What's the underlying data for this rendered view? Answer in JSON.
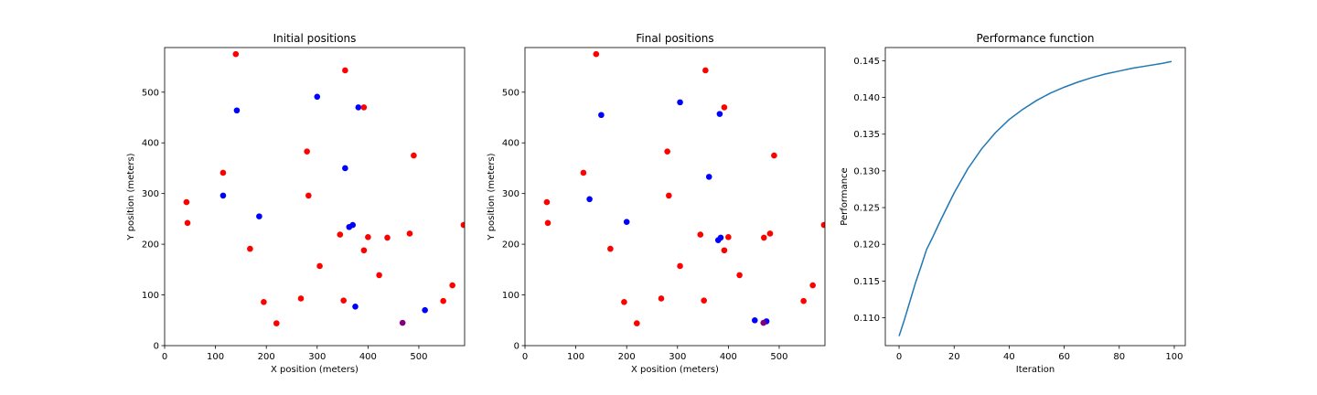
{
  "chart_data": [
    {
      "type": "scatter",
      "title": "Initial positions",
      "xlabel": "X position (meters)",
      "ylabel": "Y position (meters)",
      "xlim": [
        0,
        590
      ],
      "ylim": [
        0,
        588
      ],
      "xticks": [
        0,
        100,
        200,
        300,
        400,
        500
      ],
      "yticks": [
        0,
        100,
        200,
        300,
        400,
        500
      ],
      "grid": false,
      "series": [
        {
          "color": "#ff0000",
          "points": [
            [
              140,
              575
            ],
            [
              355,
              543
            ],
            [
              392,
              470
            ],
            [
              490,
              375
            ],
            [
              280,
              383
            ],
            [
              283,
              296
            ],
            [
              43,
              283
            ],
            [
              45,
              242
            ],
            [
              115,
              341
            ],
            [
              168,
              191
            ],
            [
              195,
              86
            ],
            [
              220,
              44
            ],
            [
              268,
              93
            ],
            [
              305,
              157
            ],
            [
              345,
              219
            ],
            [
              352,
              89
            ],
            [
              400,
              214
            ],
            [
              392,
              188
            ],
            [
              422,
              139
            ],
            [
              438,
              213
            ],
            [
              482,
              221
            ],
            [
              548,
              88
            ],
            [
              566,
              119
            ],
            [
              588,
              238
            ]
          ]
        },
        {
          "color": "#0000ff",
          "points": [
            [
              142,
              464
            ],
            [
              300,
              491
            ],
            [
              381,
              470
            ],
            [
              355,
              350
            ],
            [
              115,
              296
            ],
            [
              186,
              255
            ],
            [
              363,
              234
            ],
            [
              370,
              238
            ],
            [
              375,
              77
            ],
            [
              512,
              70
            ]
          ]
        },
        {
          "color": "#800080",
          "points": [
            [
              468,
              45
            ]
          ]
        }
      ]
    },
    {
      "type": "scatter",
      "title": "Final positions",
      "xlabel": "X position (meters)",
      "ylabel": "Y position (meters)",
      "xlim": [
        0,
        590
      ],
      "ylim": [
        0,
        588
      ],
      "xticks": [
        0,
        100,
        200,
        300,
        400,
        500
      ],
      "yticks": [
        0,
        100,
        200,
        300,
        400,
        500
      ],
      "grid": false,
      "series": [
        {
          "color": "#ff0000",
          "points": [
            [
              140,
              575
            ],
            [
              355,
              543
            ],
            [
              392,
              470
            ],
            [
              490,
              375
            ],
            [
              280,
              383
            ],
            [
              283,
              296
            ],
            [
              43,
              283
            ],
            [
              45,
              242
            ],
            [
              115,
              341
            ],
            [
              168,
              191
            ],
            [
              195,
              86
            ],
            [
              220,
              44
            ],
            [
              268,
              93
            ],
            [
              305,
              157
            ],
            [
              345,
              219
            ],
            [
              352,
              89
            ],
            [
              400,
              214
            ],
            [
              392,
              188
            ],
            [
              422,
              139
            ],
            [
              470,
              213
            ],
            [
              482,
              221
            ],
            [
              548,
              88
            ],
            [
              566,
              119
            ],
            [
              588,
              238
            ]
          ]
        },
        {
          "color": "#0000ff",
          "points": [
            [
              150,
              455
            ],
            [
              305,
              480
            ],
            [
              383,
              457
            ],
            [
              362,
              333
            ],
            [
              127,
              289
            ],
            [
              200,
              244
            ],
            [
              380,
              208
            ],
            [
              385,
              213
            ],
            [
              452,
              50
            ],
            [
              475,
              48
            ]
          ]
        },
        {
          "color": "#800080",
          "points": [
            [
              469,
              45
            ]
          ]
        }
      ]
    },
    {
      "type": "line",
      "title": "Performance function",
      "xlabel": "Iteration",
      "ylabel": "Performance",
      "xlim": [
        -5,
        104
      ],
      "ylim": [
        0.1062,
        0.1468
      ],
      "xticks": [
        0,
        20,
        40,
        60,
        80,
        100
      ],
      "yticks": [
        0.11,
        0.115,
        0.12,
        0.125,
        0.13,
        0.135,
        0.14,
        0.145
      ],
      "ytick_labels": [
        "0.110",
        "0.115",
        "0.120",
        "0.125",
        "0.130",
        "0.135",
        "0.140",
        "0.145"
      ],
      "grid": false,
      "series": [
        {
          "color": "#1f77b4",
          "x": [
            0,
            2,
            4,
            6,
            8,
            10,
            12,
            15,
            20,
            25,
            30,
            35,
            40,
            45,
            50,
            55,
            60,
            65,
            70,
            75,
            80,
            85,
            90,
            95,
            99
          ],
          "values": [
            0.1075,
            0.1098,
            0.1123,
            0.1148,
            0.117,
            0.1193,
            0.1208,
            0.1232,
            0.127,
            0.1303,
            0.133,
            0.1352,
            0.137,
            0.1384,
            0.1396,
            0.1406,
            0.1414,
            0.1421,
            0.1427,
            0.1432,
            0.1436,
            0.144,
            0.1443,
            0.1446,
            0.1449
          ]
        }
      ]
    }
  ]
}
